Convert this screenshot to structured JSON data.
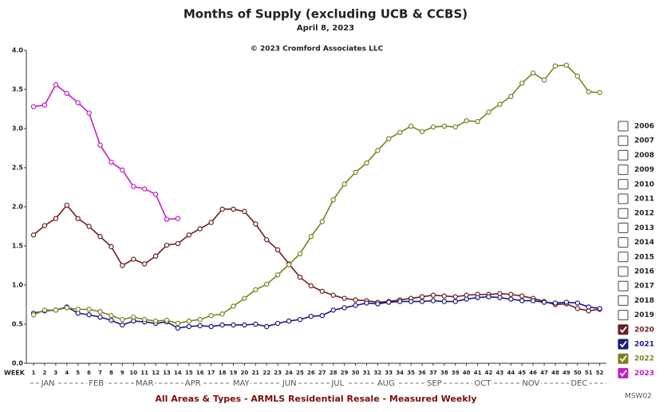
{
  "chart_data": {
    "type": "line",
    "title": "Months of Supply (excluding UCB & CCBS)",
    "subtitle": "April 8, 2023",
    "annotation": "© 2023 Cromford Associates LLC",
    "footer": "All Areas & Types - ARMLS Residential Resale - Measured Weekly",
    "code": "MSW02",
    "xlabel": "WEEK",
    "x": [
      1,
      2,
      3,
      4,
      5,
      6,
      7,
      8,
      9,
      10,
      11,
      12,
      13,
      14,
      15,
      16,
      17,
      18,
      19,
      20,
      21,
      22,
      23,
      24,
      25,
      26,
      27,
      28,
      29,
      30,
      31,
      32,
      33,
      34,
      35,
      36,
      37,
      38,
      39,
      40,
      41,
      42,
      43,
      44,
      45,
      46,
      47,
      48,
      49,
      50,
      51,
      52
    ],
    "xlim": [
      0.35,
      52.6
    ],
    "xticks": [
      1,
      2,
      3,
      4,
      5,
      6,
      7,
      8,
      9,
      10,
      11,
      12,
      13,
      14,
      15,
      16,
      17,
      18,
      19,
      20,
      21,
      22,
      23,
      24,
      25,
      26,
      27,
      28,
      29,
      30,
      31,
      32,
      33,
      34,
      35,
      36,
      37,
      38,
      39,
      40,
      41,
      42,
      43,
      44,
      45,
      46,
      47,
      48,
      49,
      50,
      51,
      52
    ],
    "month_labels": [
      "JAN",
      "FEB",
      "MAR",
      "APR",
      "MAY",
      "JUN",
      "JUL",
      "AUG",
      "SEP",
      "OCT",
      "NOV",
      "DEC"
    ],
    "ylim": [
      0,
      4
    ],
    "yticks": [
      {
        "value": 0,
        "label": "0.0"
      },
      0.5,
      {
        "value": 1,
        "label": "1.0"
      },
      1.5,
      {
        "value": 2,
        "label": "2.0"
      },
      2.5,
      {
        "value": 3,
        "label": "3.0"
      },
      3.5,
      {
        "value": 4,
        "label": "4.0"
      }
    ],
    "grid": false,
    "legend": "right",
    "other_years": [
      "2006",
      "2007",
      "2008",
      "2009",
      "2010",
      "2011",
      "2012",
      "2013",
      "2014",
      "2015",
      "2016",
      "2017",
      "2018",
      "2019"
    ],
    "series": [
      {
        "name": "2020",
        "color": "#6b1f1f",
        "values": [
          1.64,
          1.76,
          1.85,
          2.02,
          1.85,
          1.75,
          1.62,
          1.49,
          1.25,
          1.33,
          1.27,
          1.37,
          1.51,
          1.53,
          1.64,
          1.72,
          1.8,
          1.97,
          1.97,
          1.94,
          1.78,
          1.58,
          1.45,
          1.27,
          1.1,
          0.99,
          0.92,
          0.87,
          0.83,
          0.81,
          0.8,
          0.78,
          0.79,
          0.81,
          0.83,
          0.85,
          0.87,
          0.86,
          0.85,
          0.87,
          0.88,
          0.88,
          0.89,
          0.88,
          0.86,
          0.83,
          0.79,
          0.75,
          0.76,
          0.7,
          0.67,
          0.69
        ]
      },
      {
        "name": "2021",
        "color": "#1a1a80",
        "values": [
          0.64,
          0.67,
          0.68,
          0.72,
          0.64,
          0.62,
          0.59,
          0.55,
          0.49,
          0.54,
          0.53,
          0.51,
          0.53,
          0.45,
          0.47,
          0.48,
          0.47,
          0.49,
          0.49,
          0.49,
          0.5,
          0.47,
          0.51,
          0.54,
          0.56,
          0.6,
          0.61,
          0.68,
          0.71,
          0.74,
          0.77,
          0.76,
          0.78,
          0.79,
          0.79,
          0.79,
          0.8,
          0.79,
          0.79,
          0.82,
          0.84,
          0.85,
          0.84,
          0.82,
          0.8,
          0.8,
          0.78,
          0.77,
          0.78,
          0.77,
          0.72,
          0.7
        ]
      },
      {
        "name": "2022",
        "color": "#808020",
        "values": [
          0.62,
          0.68,
          0.68,
          0.71,
          0.69,
          0.69,
          0.66,
          0.61,
          0.56,
          0.59,
          0.56,
          0.54,
          0.55,
          0.51,
          0.54,
          0.56,
          0.61,
          0.63,
          0.73,
          0.83,
          0.94,
          1.01,
          1.13,
          1.26,
          1.4,
          1.62,
          1.81,
          2.09,
          2.29,
          2.44,
          2.56,
          2.72,
          2.87,
          2.95,
          3.03,
          2.96,
          3.02,
          3.03,
          3.02,
          3.1,
          3.09,
          3.21,
          3.31,
          3.41,
          3.58,
          3.71,
          3.62,
          3.8,
          3.81,
          3.67,
          3.47,
          3.46
        ]
      },
      {
        "name": "2023",
        "color": "#c020c0",
        "values": [
          3.28,
          3.3,
          3.56,
          3.45,
          3.33,
          3.2,
          2.79,
          2.57,
          2.47,
          2.26,
          2.23,
          2.16,
          1.84,
          1.85,
          null,
          null,
          null,
          null,
          null,
          null,
          null,
          null,
          null,
          null,
          null,
          null,
          null,
          null,
          null,
          null,
          null,
          null,
          null,
          null,
          null,
          null,
          null,
          null,
          null,
          null,
          null,
          null,
          null,
          null,
          null,
          null,
          null,
          null,
          null,
          null,
          null,
          null
        ]
      }
    ]
  }
}
